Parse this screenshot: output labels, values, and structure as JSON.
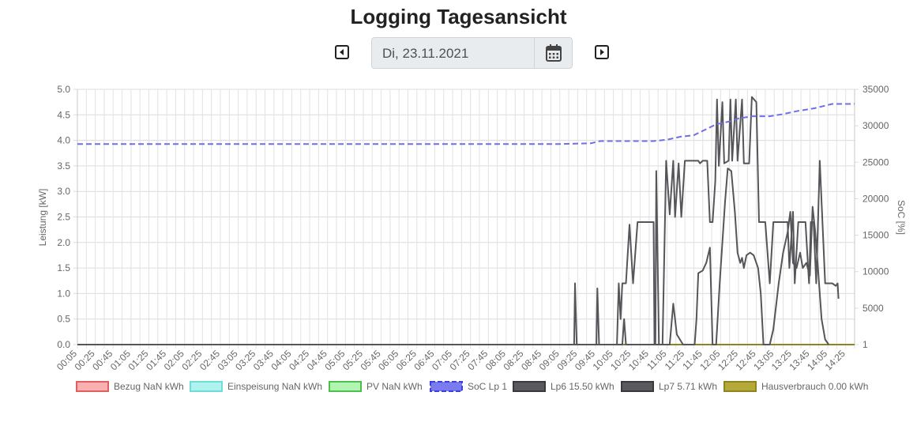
{
  "page": {
    "title": "Logging Tagesansicht",
    "date_value": "Di, 23.11.2021",
    "icons": {
      "prev": "caret-left-icon",
      "next": "caret-right-icon",
      "calendar": "calendar-icon"
    }
  },
  "chart_data": {
    "type": "line",
    "x_tick_labels": [
      "00:05",
      "00:25",
      "00:45",
      "01:05",
      "01:25",
      "01:45",
      "02:05",
      "02:25",
      "02:45",
      "03:05",
      "03:25",
      "03:45",
      "04:05",
      "04:25",
      "04:45",
      "05:05",
      "05:25",
      "05:45",
      "06:05",
      "06:25",
      "06:45",
      "07:05",
      "07:25",
      "07:45",
      "08:05",
      "08:25",
      "08:45",
      "09:05",
      "09:25",
      "09:45",
      "10:05",
      "10:25",
      "10:45",
      "11:05",
      "11:25",
      "11:45",
      "12:05",
      "12:25",
      "12:45",
      "13:05",
      "13:25",
      "13:45",
      "14:05",
      "14:25"
    ],
    "x_start_minute": 5,
    "x_end_minute": 875,
    "y_left": {
      "label": "Leistung [kW]",
      "min": 0,
      "max": 5.0,
      "ticks": [
        "0.0",
        "0.5",
        "1.0",
        "1.5",
        "2.0",
        "2.5",
        "3.0",
        "3.5",
        "4.0",
        "4.5",
        "5.0"
      ]
    },
    "y_right": {
      "label": "SoC [%]",
      "min": 1,
      "max": 35000,
      "ticks": [
        "1",
        "5000",
        "10000",
        "15000",
        "20000",
        "25000",
        "30000",
        "35000"
      ]
    },
    "grid": true,
    "legend_position": "bottom",
    "legend": [
      {
        "label": "Bezug NaN kWh",
        "fill": "#f8b0b0",
        "stroke": "#e06060",
        "dashed": false
      },
      {
        "label": "Einspeisung NaN kWh",
        "fill": "#aef3f0",
        "stroke": "#70dcd6",
        "dashed": false
      },
      {
        "label": "PV NaN kWh",
        "fill": "#b2f5b2",
        "stroke": "#4cbf4c",
        "dashed": false
      },
      {
        "label": "SoC Lp 1",
        "fill": "#7b7bf0",
        "stroke": "#3d3de0",
        "dashed": true
      },
      {
        "label": "Lp6 15.50 kWh",
        "fill": "#5a5a5e",
        "stroke": "#3a3a3e",
        "dashed": false
      },
      {
        "label": "Lp7 5.71 kWh",
        "fill": "#5a5a5e",
        "stroke": "#3a3a3e",
        "dashed": false
      },
      {
        "label": "Hausverbrauch 0.00 kWh",
        "fill": "#b5a93a",
        "stroke": "#8e8420",
        "dashed": false
      }
    ],
    "series": [
      {
        "name": "SoC Lp 1",
        "axis": "right",
        "color": "#6f6fe6",
        "dashed": true,
        "points": [
          [
            5,
            27500
          ],
          [
            545,
            27500
          ],
          [
            580,
            27600
          ],
          [
            590,
            27900
          ],
          [
            650,
            27900
          ],
          [
            665,
            28100
          ],
          [
            680,
            28500
          ],
          [
            695,
            28700
          ],
          [
            705,
            29300
          ],
          [
            720,
            30200
          ],
          [
            735,
            30600
          ],
          [
            745,
            31000
          ],
          [
            760,
            31300
          ],
          [
            780,
            31300
          ],
          [
            795,
            31600
          ],
          [
            810,
            32000
          ],
          [
            830,
            32400
          ],
          [
            850,
            33000
          ],
          [
            875,
            33000
          ]
        ]
      },
      {
        "name": "Lp6 15.50 kWh",
        "axis": "left",
        "color": "#55555a",
        "dashed": false,
        "points": [
          [
            5,
            0
          ],
          [
            561,
            0
          ],
          [
            562,
            1.2
          ],
          [
            564,
            0
          ],
          [
            586,
            0
          ],
          [
            587,
            1.1
          ],
          [
            589,
            0
          ],
          [
            609,
            0
          ],
          [
            611,
            1.2
          ],
          [
            613,
            0.5
          ],
          [
            615,
            1.2
          ],
          [
            619,
            1.2
          ],
          [
            623,
            2.35
          ],
          [
            627,
            1.2
          ],
          [
            632,
            2.4
          ],
          [
            650,
            2.4
          ],
          [
            651,
            0
          ],
          [
            660,
            0
          ],
          [
            664,
            3.6
          ],
          [
            668,
            2.55
          ],
          [
            672,
            3.6
          ],
          [
            674,
            2.5
          ],
          [
            678,
            3.55
          ],
          [
            681,
            2.5
          ],
          [
            685,
            3.6
          ],
          [
            700,
            3.6
          ],
          [
            702,
            3.55
          ],
          [
            705,
            3.6
          ],
          [
            710,
            3.6
          ],
          [
            713,
            2.4
          ],
          [
            716,
            2.4
          ],
          [
            719,
            3.2
          ],
          [
            721,
            4.8
          ],
          [
            723,
            3.5
          ],
          [
            727,
            4.75
          ],
          [
            729,
            3.55
          ],
          [
            734,
            3.6
          ],
          [
            736,
            4.8
          ],
          [
            738,
            3.6
          ],
          [
            742,
            4.8
          ],
          [
            744,
            3.6
          ],
          [
            749,
            4.8
          ],
          [
            751,
            3.55
          ],
          [
            757,
            3.55
          ],
          [
            760,
            4.85
          ],
          [
            765,
            4.75
          ],
          [
            768,
            2.4
          ],
          [
            775,
            2.4
          ],
          [
            780,
            1.2
          ],
          [
            784,
            2.4
          ],
          [
            800,
            2.4
          ],
          [
            802,
            1.5
          ],
          [
            806,
            2.6
          ],
          [
            808,
            1.2
          ],
          [
            812,
            2.4
          ],
          [
            820,
            2.4
          ],
          [
            824,
            1.2
          ],
          [
            826,
            2.4
          ],
          [
            829,
            2.4
          ],
          [
            832,
            1.2
          ],
          [
            836,
            3.6
          ],
          [
            842,
            1.2
          ],
          [
            845,
            1.2
          ],
          [
            850,
            1.2
          ],
          [
            854,
            1.15
          ],
          [
            856,
            1.2
          ],
          [
            857,
            0.9
          ]
        ]
      },
      {
        "name": "Lp7 5.71 kWh",
        "axis": "left",
        "color": "#55555a",
        "dashed": false,
        "points": [
          [
            5,
            0
          ],
          [
            615,
            0
          ],
          [
            617,
            0.5
          ],
          [
            619,
            0
          ],
          [
            652,
            0
          ],
          [
            653,
            3.4
          ],
          [
            656,
            0
          ],
          [
            668,
            0
          ],
          [
            672,
            0.8
          ],
          [
            676,
            0.2
          ],
          [
            683,
            0
          ],
          [
            696,
            0
          ],
          [
            698,
            0.5
          ],
          [
            700,
            1.4
          ],
          [
            705,
            1.45
          ],
          [
            709,
            1.6
          ],
          [
            713,
            1.9
          ],
          [
            716,
            0
          ],
          [
            720,
            0
          ],
          [
            724,
            1.2
          ],
          [
            730,
            2.8
          ],
          [
            733,
            3.45
          ],
          [
            737,
            3.4
          ],
          [
            741,
            2.6
          ],
          [
            744,
            1.8
          ],
          [
            747,
            1.6
          ],
          [
            749,
            1.7
          ],
          [
            751,
            1.5
          ],
          [
            754,
            1.75
          ],
          [
            758,
            1.8
          ],
          [
            762,
            1.75
          ],
          [
            767,
            1.5
          ],
          [
            770,
            1.0
          ],
          [
            773,
            0
          ],
          [
            780,
            0
          ],
          [
            784,
            0.3
          ],
          [
            790,
            1.2
          ],
          [
            795,
            1.8
          ],
          [
            800,
            2.2
          ],
          [
            803,
            2.6
          ],
          [
            806,
            1.6
          ],
          [
            810,
            1.5
          ],
          [
            814,
            1.8
          ],
          [
            817,
            1.5
          ],
          [
            821,
            1.6
          ],
          [
            825,
            1.35
          ],
          [
            828,
            2.7
          ],
          [
            831,
            2.2
          ],
          [
            834,
            1.5
          ],
          [
            838,
            0.5
          ],
          [
            842,
            0.1
          ],
          [
            846,
            0
          ]
        ]
      },
      {
        "name": "Bezug NaN kWh",
        "axis": "left",
        "color": "#e06060",
        "dashed": false,
        "points": [
          [
            5,
            0
          ],
          [
            875,
            0
          ]
        ]
      },
      {
        "name": "Einspeisung NaN kWh",
        "axis": "left",
        "color": "#70dcd6",
        "dashed": false,
        "points": [
          [
            5,
            0
          ],
          [
            875,
            0
          ]
        ]
      },
      {
        "name": "PV NaN kWh",
        "axis": "left",
        "color": "#4cbf4c",
        "dashed": false,
        "points": [
          [
            5,
            0
          ],
          [
            875,
            0
          ]
        ]
      },
      {
        "name": "Hausverbrauch 0.00 kWh",
        "axis": "left",
        "color": "#8e8420",
        "dashed": false,
        "points": [
          [
            5,
            0
          ],
          [
            875,
            0
          ]
        ]
      }
    ]
  }
}
